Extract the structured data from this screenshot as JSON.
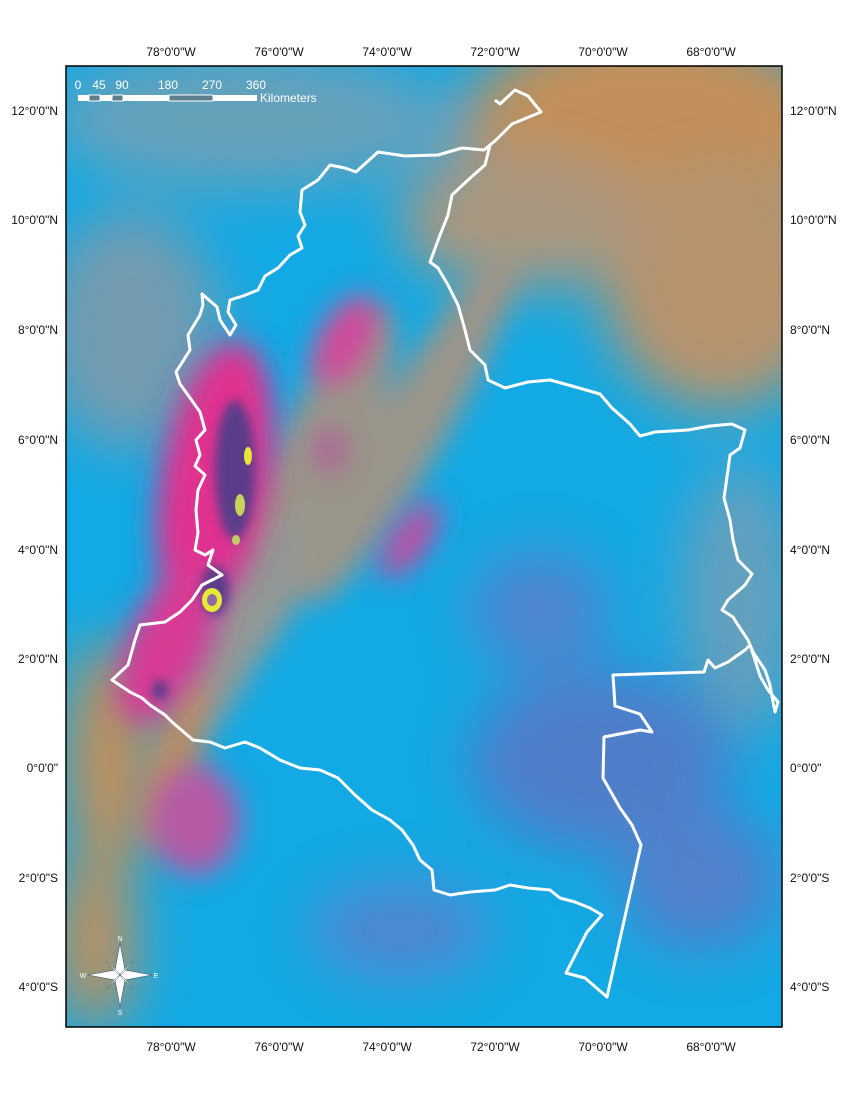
{
  "map": {
    "graticule": {
      "top_labels": [
        "78°0'0\"W",
        "76°0'0\"W",
        "74°0'0\"W",
        "72°0'0\"W",
        "70°0'0\"W",
        "68°0'0\"W"
      ],
      "bottom_labels": [
        "78°0'0\"W",
        "76°0'0\"W",
        "74°0'0\"W",
        "72°0'0\"W",
        "70°0'0\"W",
        "68°0'0\"W"
      ],
      "left_labels": [
        "12°0'0\"N",
        "10°0'0\"N",
        "8°0'0\"N",
        "6°0'0\"N",
        "4°0'0\"N",
        "2°0'0\"N",
        "0°0'0\"",
        "2°0'0\"S",
        "4°0'0\"S"
      ],
      "right_labels": [
        "12°0'0\"N",
        "10°0'0\"N",
        "8°0'0\"N",
        "6°0'0\"N",
        "4°0'0\"N",
        "2°0'0\"N",
        "0°0'0\"",
        "2°0'0\"S",
        "4°0'0\"S"
      ]
    },
    "scale_bar": {
      "ticks": [
        "0",
        "45",
        "90",
        "180",
        "270",
        "360"
      ],
      "unit": "Kilometers"
    },
    "compass": {
      "n": "N",
      "s": "S",
      "e": "E",
      "w": "W"
    },
    "colors": {
      "background_cyan": "#13a9e4",
      "orange": "#d58c4b",
      "magenta": "#e0338f",
      "purple": "#6c4c9b",
      "yellow": "#e7ea34",
      "boundary": "#ffffff"
    }
  }
}
